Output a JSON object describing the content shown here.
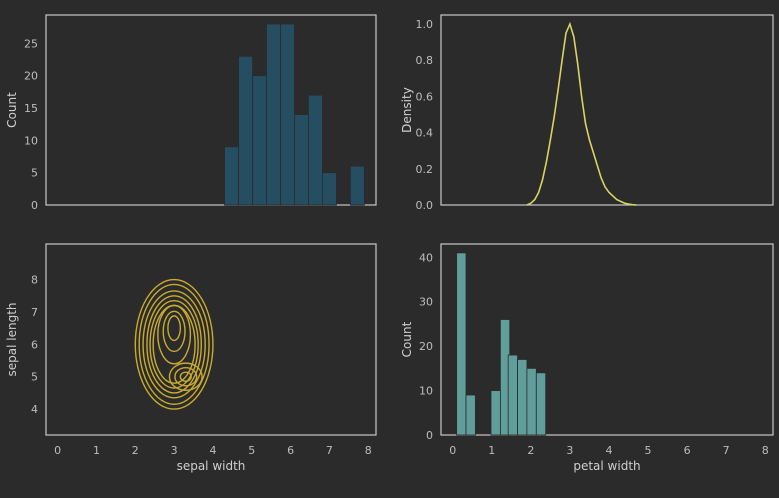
{
  "theme": {
    "background": "#2b2b2b",
    "axis_edge": "#c8c8c8",
    "tick_text": "#bdbdbd",
    "label_text": "#cfcfcf",
    "hist_top_color": "#264e63",
    "kde_line_color": "#d7d463",
    "contour_color": "#c9ab2f",
    "hist_bottom_color": "#5f9e9b"
  },
  "chart_data": [
    {
      "type": "bar",
      "title": "",
      "xlabel": "",
      "ylabel": "Count",
      "xlim": [
        -0.3,
        8.2
      ],
      "ylim": [
        0,
        29.4
      ],
      "yticks": [
        0,
        5,
        10,
        15,
        20,
        25
      ],
      "bar_width": 0.36,
      "bins": [
        {
          "x0": 4.3,
          "value": 9
        },
        {
          "x0": 4.66,
          "value": 23
        },
        {
          "x0": 5.02,
          "value": 20
        },
        {
          "x0": 5.38,
          "value": 28
        },
        {
          "x0": 5.74,
          "value": 28
        },
        {
          "x0": 6.1,
          "value": 14
        },
        {
          "x0": 6.46,
          "value": 17
        },
        {
          "x0": 6.82,
          "value": 5
        },
        {
          "x0": 7.18,
          "value": 0
        },
        {
          "x0": 7.54,
          "value": 6
        }
      ]
    },
    {
      "type": "line",
      "title": "",
      "xlabel": "",
      "ylabel": "Density",
      "xlim": [
        -0.3,
        8.2
      ],
      "ylim": [
        0,
        1.05
      ],
      "yticks": [
        0.0,
        0.2,
        0.4,
        0.6,
        0.8,
        1.0
      ],
      "series": [
        {
          "x": [
            1.9,
            2.0,
            2.1,
            2.2,
            2.3,
            2.4,
            2.5,
            2.6,
            2.7,
            2.8,
            2.9,
            3.0,
            3.1,
            3.2,
            3.3,
            3.4,
            3.5,
            3.6,
            3.7,
            3.8,
            3.9,
            4.0,
            4.1,
            4.2,
            4.3,
            4.4,
            4.5,
            4.6,
            4.7
          ],
          "y": [
            0.0,
            0.01,
            0.03,
            0.07,
            0.14,
            0.24,
            0.36,
            0.49,
            0.64,
            0.8,
            0.95,
            1.0,
            0.93,
            0.78,
            0.6,
            0.45,
            0.36,
            0.29,
            0.22,
            0.15,
            0.1,
            0.07,
            0.05,
            0.03,
            0.02,
            0.01,
            0.005,
            0.002,
            0.0
          ]
        }
      ]
    },
    {
      "type": "contour",
      "title": "",
      "xlabel": "sepal width",
      "ylabel": "sepal length",
      "xlim": [
        -0.3,
        8.2
      ],
      "ylim": [
        3.2,
        9.1
      ],
      "xticks": [
        0,
        1,
        2,
        3,
        4,
        5,
        6,
        7,
        8
      ],
      "yticks": [
        4,
        5,
        6,
        7,
        8
      ],
      "contours": [
        {
          "cx": 3.0,
          "cy": 6.0,
          "rx": 1.0,
          "ry": 2.0
        },
        {
          "cx": 3.0,
          "cy": 6.0,
          "rx": 0.9,
          "ry": 1.85
        },
        {
          "cx": 3.0,
          "cy": 6.0,
          "rx": 0.8,
          "ry": 1.65
        },
        {
          "cx": 3.0,
          "cy": 6.0,
          "rx": 0.7,
          "ry": 1.5
        },
        {
          "cx": 3.0,
          "cy": 6.0,
          "rx": 0.62,
          "ry": 1.35
        },
        {
          "cx": 3.0,
          "cy": 6.0,
          "rx": 0.54,
          "ry": 1.2
        },
        {
          "cx": 3.0,
          "cy": 6.3,
          "rx": 0.42,
          "ry": 0.9
        },
        {
          "cx": 3.0,
          "cy": 6.4,
          "rx": 0.28,
          "ry": 0.62
        },
        {
          "cx": 3.0,
          "cy": 6.5,
          "rx": 0.16,
          "ry": 0.38
        },
        {
          "cx": 3.3,
          "cy": 5.0,
          "rx": 0.42,
          "ry": 0.42
        },
        {
          "cx": 3.3,
          "cy": 5.0,
          "rx": 0.28,
          "ry": 0.28
        },
        {
          "cx": 3.3,
          "cy": 5.0,
          "rx": 0.14,
          "ry": 0.14
        }
      ]
    },
    {
      "type": "bar",
      "title": "",
      "xlabel": "petal width",
      "ylabel": "Count",
      "xlim": [
        -0.3,
        8.2
      ],
      "ylim": [
        0,
        43
      ],
      "xticks": [
        0,
        1,
        2,
        3,
        4,
        5,
        6,
        7,
        8
      ],
      "yticks": [
        0,
        10,
        20,
        30,
        40
      ],
      "bar_width": 0.24,
      "bins": [
        {
          "x0": 0.1,
          "value": 41
        },
        {
          "x0": 0.34,
          "value": 9
        },
        {
          "x0": 0.58,
          "value": 0
        },
        {
          "x0": 0.82,
          "value": 0
        },
        {
          "x0": 0.98,
          "value": 10
        },
        {
          "x0": 1.22,
          "value": 26
        },
        {
          "x0": 1.42,
          "value": 18
        },
        {
          "x0": 1.66,
          "value": 17
        },
        {
          "x0": 1.9,
          "value": 15
        },
        {
          "x0": 2.14,
          "value": 14
        }
      ]
    }
  ]
}
